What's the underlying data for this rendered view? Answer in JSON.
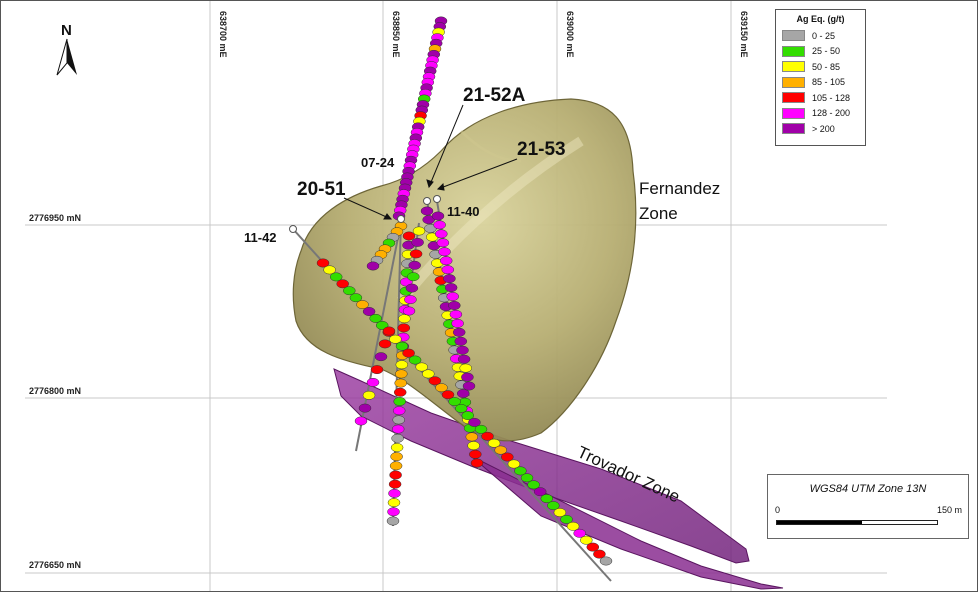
{
  "north_arrow": {
    "label": "N"
  },
  "eastings": [
    "638700 mE",
    "638850 mE",
    "639000 mE",
    "639150 mE"
  ],
  "northings": [
    "2776950 mN",
    "2776800 mN",
    "2776650 mN"
  ],
  "drill_holes": [
    {
      "id": "20-51"
    },
    {
      "id": "21-52A"
    },
    {
      "id": "21-53"
    },
    {
      "id": "07-24"
    },
    {
      "id": "11-42"
    },
    {
      "id": "11-40"
    }
  ],
  "zones": {
    "fernandez_line1": "Fernandez",
    "fernandez_line2": "Zone",
    "trovador": "Trovador Zone"
  },
  "legend": {
    "title": "Ag Eq. (g/t)",
    "items": [
      {
        "label": "0 - 25",
        "color": "#a6a6a6"
      },
      {
        "label": "25 - 50",
        "color": "#33dd00"
      },
      {
        "label": "50 - 85",
        "color": "#ffff00"
      },
      {
        "label": "85 - 105",
        "color": "#ffb000"
      },
      {
        "label": "105 - 128",
        "color": "#ff0000"
      },
      {
        "label": "128 - 200",
        "color": "#ff00ff"
      },
      {
        "label": "> 200",
        "color": "#a000a8"
      }
    ]
  },
  "scale": {
    "title": "WGS84 UTM Zone 13N",
    "min_label": "0",
    "max_label": "150 m"
  }
}
